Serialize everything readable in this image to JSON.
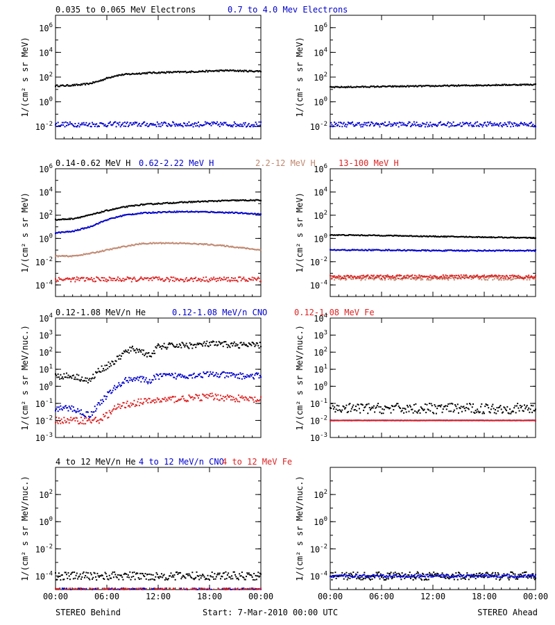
{
  "chart_data": [
    {
      "type": "scatter",
      "row": 0,
      "col": 0,
      "scale": "log",
      "ylim": [
        0.001,
        10000000
      ],
      "ylabel": "1/(cm² s sr MeV)",
      "yticks": [
        {
          "v": 1000000,
          "base": "10",
          "exp": "6"
        },
        {
          "v": 10000,
          "base": "10",
          "exp": "4"
        },
        {
          "v": 100,
          "base": "10",
          "exp": "2"
        },
        {
          "v": 1,
          "base": "10",
          "exp": "0"
        },
        {
          "v": 0.01,
          "base": "10",
          "exp": "-2"
        }
      ],
      "series": [
        {
          "name": "0.035 to 0.065 MeV Electrons",
          "color": "#000000",
          "x": [
            0,
            1,
            2,
            3,
            4,
            5,
            6,
            7,
            8,
            9,
            10,
            11,
            12,
            13,
            14,
            15,
            16,
            17,
            18,
            19,
            20,
            21,
            22,
            23,
            24
          ],
          "y": [
            20,
            20,
            22,
            24,
            30,
            45,
            80,
            130,
            160,
            180,
            200,
            220,
            230,
            240,
            250,
            260,
            270,
            290,
            300,
            320,
            340,
            330,
            310,
            300,
            300
          ],
          "scatter": 0.06
        },
        {
          "name": "0.7 to 4.0 Mev Electrons",
          "color": "#0000cc",
          "x": [
            0,
            6,
            12,
            18,
            24
          ],
          "y": [
            0.015,
            0.015,
            0.015,
            0.015,
            0.015
          ],
          "scatter": 0.2
        }
      ]
    },
    {
      "type": "scatter",
      "row": 0,
      "col": 1,
      "scale": "log",
      "ylim": [
        0.001,
        10000000
      ],
      "ylabel": "1/(cm² s sr MeV)",
      "yticks": [
        {
          "v": 1000000,
          "base": "10",
          "exp": "6"
        },
        {
          "v": 10000,
          "base": "10",
          "exp": "4"
        },
        {
          "v": 100,
          "base": "10",
          "exp": "2"
        },
        {
          "v": 1,
          "base": "10",
          "exp": "0"
        },
        {
          "v": 0.01,
          "base": "10",
          "exp": "-2"
        }
      ],
      "series": [
        {
          "name": "",
          "color": "#000000",
          "x": [
            0,
            6,
            12,
            18,
            24
          ],
          "y": [
            15,
            17,
            19,
            22,
            25
          ],
          "scatter": 0.05
        },
        {
          "name": "",
          "color": "#0000cc",
          "x": [
            0,
            6,
            12,
            18,
            24
          ],
          "y": [
            0.015,
            0.015,
            0.015,
            0.015,
            0.015
          ],
          "scatter": 0.2
        }
      ]
    },
    {
      "type": "scatter",
      "row": 1,
      "col": 0,
      "scale": "log",
      "ylim": [
        1e-05,
        1000000
      ],
      "ylabel": "1/(cm² s sr MeV)",
      "yticks": [
        {
          "v": 1000000,
          "base": "10",
          "exp": "6"
        },
        {
          "v": 10000,
          "base": "10",
          "exp": "4"
        },
        {
          "v": 100,
          "base": "10",
          "exp": "2"
        },
        {
          "v": 1,
          "base": "10",
          "exp": "0"
        },
        {
          "v": 0.01,
          "base": "10",
          "exp": "-2"
        },
        {
          "v": 0.0001,
          "base": "10",
          "exp": "-4"
        }
      ],
      "series": [
        {
          "name": "0.14-0.62 MeV H",
          "color": "#000000",
          "x": [
            0,
            2,
            4,
            6,
            8,
            10,
            12,
            14,
            16,
            18,
            20,
            22,
            24
          ],
          "y": [
            40,
            50,
            100,
            250,
            500,
            800,
            1000,
            1200,
            1400,
            1600,
            1800,
            1900,
            1900
          ],
          "scatter": 0.05
        },
        {
          "name": "0.62-2.22 MeV H",
          "color": "#0000cc",
          "x": [
            0,
            2,
            4,
            6,
            8,
            10,
            12,
            14,
            16,
            18,
            20,
            22,
            24
          ],
          "y": [
            3,
            4,
            10,
            40,
            100,
            150,
            180,
            200,
            200,
            190,
            170,
            150,
            120
          ],
          "scatter": 0.05
        },
        {
          "name": "2.2-12 MeV H",
          "color": "#c08870",
          "x": [
            0,
            2,
            4,
            6,
            8,
            10,
            12,
            14,
            16,
            18,
            20,
            22,
            24
          ],
          "y": [
            0.03,
            0.03,
            0.05,
            0.1,
            0.2,
            0.35,
            0.4,
            0.4,
            0.35,
            0.3,
            0.22,
            0.15,
            0.1
          ],
          "scatter": 0.05
        },
        {
          "name": "13-100 MeV H",
          "color": "#dd2222",
          "x": [
            0,
            6,
            12,
            18,
            24
          ],
          "y": [
            0.0003,
            0.0003,
            0.0003,
            0.0003,
            0.0003
          ],
          "scatter": 0.2
        }
      ]
    },
    {
      "type": "scatter",
      "row": 1,
      "col": 1,
      "scale": "log",
      "ylim": [
        1e-05,
        1000000
      ],
      "ylabel": "1/(cm² s sr MeV)",
      "yticks": [
        {
          "v": 1000000,
          "base": "10",
          "exp": "6"
        },
        {
          "v": 10000,
          "base": "10",
          "exp": "4"
        },
        {
          "v": 100,
          "base": "10",
          "exp": "2"
        },
        {
          "v": 1,
          "base": "10",
          "exp": "0"
        },
        {
          "v": 0.01,
          "base": "10",
          "exp": "-2"
        },
        {
          "v": 0.0001,
          "base": "10",
          "exp": "-4"
        }
      ],
      "series": [
        {
          "name": "",
          "color": "#000000",
          "x": [
            0,
            6,
            12,
            18,
            24
          ],
          "y": [
            2,
            1.8,
            1.5,
            1.3,
            1.1
          ],
          "scatter": 0.04
        },
        {
          "name": "",
          "color": "#0000cc",
          "x": [
            0,
            6,
            12,
            18,
            24
          ],
          "y": [
            0.1,
            0.1,
            0.09,
            0.09,
            0.09
          ],
          "scatter": 0.05
        },
        {
          "name": "",
          "color": "#c08870",
          "x": [
            0,
            6,
            12,
            18,
            24
          ],
          "y": [
            0.0004,
            0.0004,
            0.0004,
            0.0004,
            0.0004
          ],
          "scatter": 0.2
        },
        {
          "name": "",
          "color": "#dd2222",
          "x": [
            0,
            6,
            12,
            18,
            24
          ],
          "y": [
            0.0005,
            0.0005,
            0.0005,
            0.0005,
            0.0005
          ],
          "scatter": 0.15
        }
      ]
    },
    {
      "type": "scatter",
      "row": 2,
      "col": 0,
      "scale": "log",
      "ylim": [
        0.001,
        10000
      ],
      "ylabel": "1/(cm² s sr MeV/nuc.)",
      "yticks": [
        {
          "v": 10000,
          "base": "10",
          "exp": "4"
        },
        {
          "v": 1000,
          "base": "10",
          "exp": "3"
        },
        {
          "v": 100,
          "base": "10",
          "exp": "2"
        },
        {
          "v": 10,
          "base": "10",
          "exp": "1"
        },
        {
          "v": 1,
          "base": "10",
          "exp": "0"
        },
        {
          "v": 0.1,
          "base": "10",
          "exp": "-1"
        },
        {
          "v": 0.01,
          "base": "10",
          "exp": "-2"
        },
        {
          "v": 0.001,
          "base": "10",
          "exp": "-3"
        }
      ],
      "series": [
        {
          "name": "0.12-1.08 MeV/n He",
          "color": "#000000",
          "x": [
            0,
            2,
            3,
            4,
            5,
            6,
            7,
            8,
            9,
            10,
            11,
            12,
            14,
            16,
            18,
            20,
            22,
            24
          ],
          "y": [
            4,
            4,
            3,
            2,
            8,
            15,
            30,
            90,
            150,
            120,
            60,
            200,
            250,
            250,
            300,
            280,
            260,
            250
          ],
          "scatter": 0.18
        },
        {
          "name": "0.12-1.08 MeV/n CNO",
          "color": "#0000cc",
          "x": [
            0,
            2,
            3,
            4,
            5,
            6,
            7,
            8,
            9,
            10,
            11,
            12,
            14,
            16,
            18,
            20,
            22,
            24
          ],
          "y": [
            0.05,
            0.05,
            0.03,
            0.02,
            0.08,
            0.3,
            0.8,
            2,
            3,
            2.5,
            2,
            4,
            4,
            4.5,
            5,
            4.5,
            4,
            4
          ],
          "scatter": 0.18
        },
        {
          "name": "0.12-1.08 MeV Fe",
          "color": "#dd2222",
          "x": [
            0,
            3,
            5,
            6,
            7,
            8,
            9,
            10,
            12,
            14,
            16,
            18,
            20,
            22,
            24
          ],
          "y": [
            0.01,
            0.01,
            0.01,
            0.02,
            0.05,
            0.08,
            0.1,
            0.12,
            0.15,
            0.18,
            0.2,
            0.25,
            0.22,
            0.18,
            0.15
          ],
          "scatter": 0.2
        }
      ]
    },
    {
      "type": "scatter",
      "row": 2,
      "col": 1,
      "scale": "log",
      "ylim": [
        0.001,
        10000
      ],
      "ylabel": "1/(cm² s sr MeV/nuc.)",
      "yticks": [
        {
          "v": 10000,
          "base": "10",
          "exp": "4"
        },
        {
          "v": 1000,
          "base": "10",
          "exp": "3"
        },
        {
          "v": 100,
          "base": "10",
          "exp": "2"
        },
        {
          "v": 10,
          "base": "10",
          "exp": "1"
        },
        {
          "v": 1,
          "base": "10",
          "exp": "0"
        },
        {
          "v": 0.1,
          "base": "10",
          "exp": "-1"
        },
        {
          "v": 0.01,
          "base": "10",
          "exp": "-2"
        },
        {
          "v": 0.001,
          "base": "10",
          "exp": "-3"
        }
      ],
      "series": [
        {
          "name": "",
          "color": "#000000",
          "x": [
            0,
            6,
            12,
            18,
            24
          ],
          "y": [
            0.05,
            0.05,
            0.05,
            0.05,
            0.05
          ],
          "scatter": 0.3
        },
        {
          "name": "",
          "color": "#0000cc",
          "x": [
            0,
            6,
            12,
            18,
            24
          ],
          "y": [
            0.01,
            0.01,
            0.01,
            0.01,
            0.01
          ],
          "scatter": 0.01
        },
        {
          "name": "",
          "color": "#dd2222",
          "x": [
            0,
            6,
            12,
            18,
            24
          ],
          "y": [
            0.01,
            0.01,
            0.01,
            0.01,
            0.01
          ],
          "scatter": 0.01
        }
      ]
    },
    {
      "type": "scatter",
      "row": 3,
      "col": 0,
      "scale": "log",
      "ylim": [
        1e-05,
        10000
      ],
      "ylabel": "1/(cm² s sr MeV/nuc.)",
      "yticks": [
        {
          "v": 100,
          "base": "10",
          "exp": "2"
        },
        {
          "v": 1,
          "base": "10",
          "exp": "0"
        },
        {
          "v": 0.01,
          "base": "10",
          "exp": "-2"
        },
        {
          "v": 0.0001,
          "base": "10",
          "exp": "-4"
        }
      ],
      "series": [
        {
          "name": "4 to 12 MeV/n He",
          "color": "#000000",
          "x": [
            0,
            6,
            12,
            18,
            24
          ],
          "y": [
            0.0001,
            0.0001,
            0.0001,
            0.0001,
            0.0001
          ],
          "scatter": 0.3
        },
        {
          "name": "4 to 12 MeV/n CNO",
          "color": "#0000cc",
          "x": [
            0,
            6,
            12,
            18,
            24
          ],
          "y": [
            1e-05,
            1e-05,
            1e-05,
            1e-05,
            1e-05
          ],
          "scatter": 0.1
        },
        {
          "name": "4 to 12 MeV Fe",
          "color": "#dd2222",
          "x": [
            0,
            6,
            12,
            18,
            24
          ],
          "y": [
            1e-05,
            1e-05,
            1e-05,
            1e-05,
            1e-05
          ],
          "scatter": 0.1
        }
      ]
    },
    {
      "type": "scatter",
      "row": 3,
      "col": 1,
      "scale": "log",
      "ylim": [
        1e-05,
        10000
      ],
      "ylabel": "1/(cm² s sr MeV/nuc.)",
      "yticks": [
        {
          "v": 100,
          "base": "10",
          "exp": "2"
        },
        {
          "v": 1,
          "base": "10",
          "exp": "0"
        },
        {
          "v": 0.01,
          "base": "10",
          "exp": "-2"
        },
        {
          "v": 0.0001,
          "base": "10",
          "exp": "-4"
        }
      ],
      "series": [
        {
          "name": "",
          "color": "#000000",
          "x": [
            0,
            6,
            12,
            18,
            24
          ],
          "y": [
            0.0001,
            0.0001,
            0.0001,
            0.0001,
            0.0001
          ],
          "scatter": 0.3
        },
        {
          "name": "",
          "color": "#0000cc",
          "x": [
            0,
            6,
            12,
            18,
            24
          ],
          "y": [
            0.0001,
            0.0001,
            0.0001,
            0.0001,
            0.0001
          ],
          "scatter": 0.1
        }
      ]
    }
  ],
  "x_axis": {
    "range": [
      0,
      24
    ],
    "ticks": [
      {
        "v": 0,
        "label": "00:00"
      },
      {
        "v": 6,
        "label": "06:00"
      },
      {
        "v": 12,
        "label": "12:00"
      },
      {
        "v": 18,
        "label": "18:00"
      },
      {
        "v": 24,
        "label": "00:00"
      }
    ]
  },
  "footer": {
    "left": "STEREO Behind",
    "center": "Start:  7-Mar-2010 00:00 UTC",
    "right": "STEREO Ahead"
  }
}
